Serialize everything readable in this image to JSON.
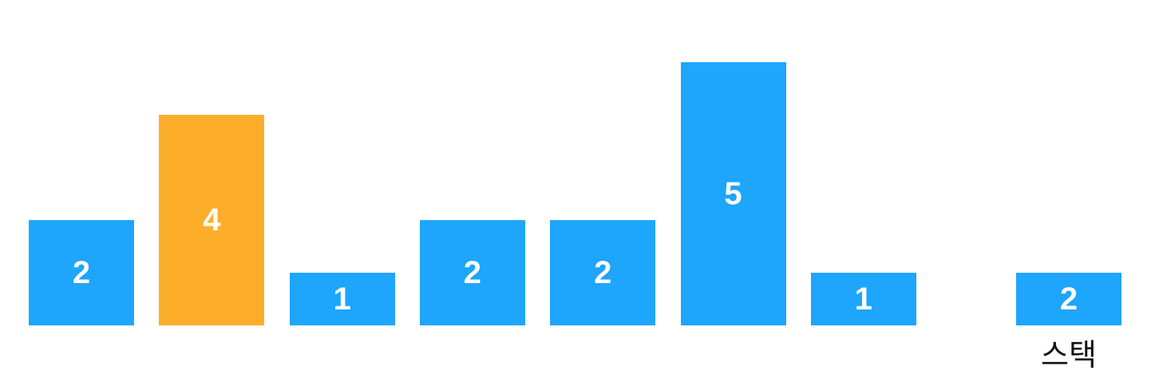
{
  "colors": {
    "default_bar": "#1ea5fc",
    "highlight_bar": "#fcae2a",
    "bar_text": "#ffffff"
  },
  "bars": [
    {
      "value": 2,
      "highlighted": false
    },
    {
      "value": 4,
      "highlighted": true
    },
    {
      "value": 1,
      "highlighted": false
    },
    {
      "value": 2,
      "highlighted": false
    },
    {
      "value": 2,
      "highlighted": false
    },
    {
      "value": 5,
      "highlighted": false
    },
    {
      "value": 1,
      "highlighted": false
    }
  ],
  "stack": {
    "label": "스택",
    "items": [
      {
        "value": 1
      }
    ],
    "display_value": "2"
  }
}
